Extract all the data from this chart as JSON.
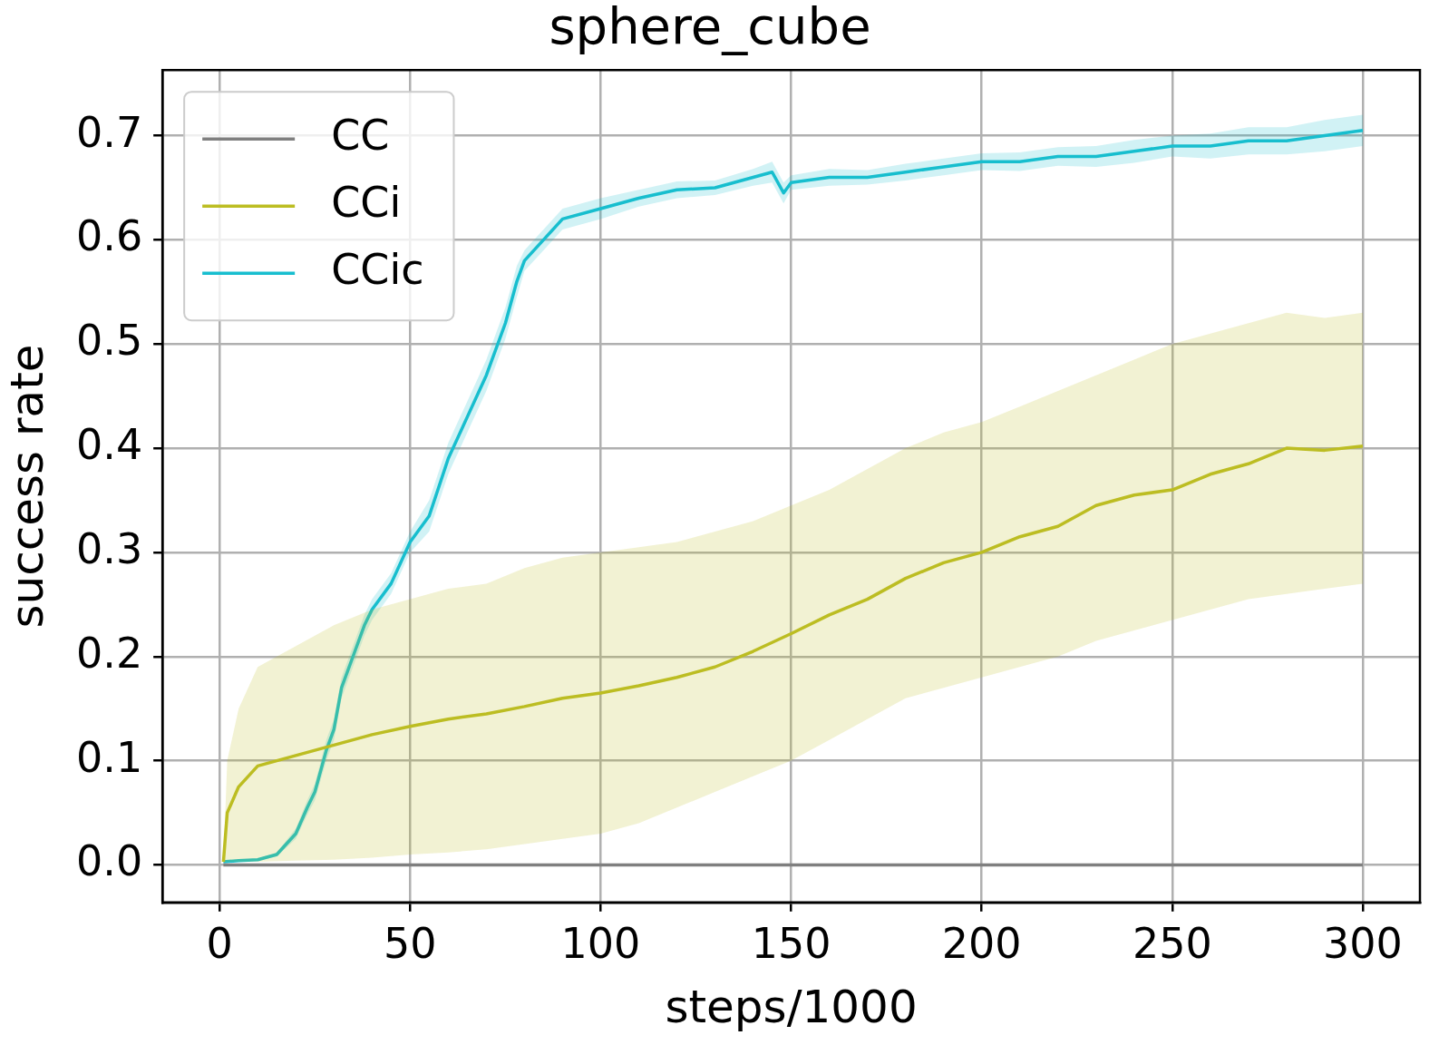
{
  "chart_data": {
    "type": "line",
    "title": "sphere_cube",
    "xlabel": "steps/1000",
    "ylabel": "success rate",
    "xlim": [
      -15,
      315
    ],
    "ylim": [
      -0.036,
      0.763
    ],
    "xticks": [
      0,
      50,
      100,
      150,
      200,
      250,
      300
    ],
    "yticks": [
      {
        "value": 0,
        "label": "0.0"
      },
      {
        "value": 0.1,
        "label": "0.1"
      },
      {
        "value": 0.2,
        "label": "0.2"
      },
      {
        "value": 0.3,
        "label": "0.3"
      },
      {
        "value": 0.4,
        "label": "0.4"
      },
      {
        "value": 0.5,
        "label": "0.5"
      },
      {
        "value": 0.6,
        "label": "0.6"
      },
      {
        "value": 0.7,
        "label": "0.7"
      }
    ],
    "grid": true,
    "legend": "top left",
    "series": [
      {
        "name": "CC",
        "color": "#7f7f7f",
        "x": [
          1,
          300
        ],
        "values": [
          0,
          0
        ]
      },
      {
        "name": "CCi",
        "color": "#bcbd22",
        "x": [
          1,
          2,
          5,
          10,
          20,
          30,
          40,
          50,
          60,
          70,
          80,
          90,
          100,
          110,
          120,
          130,
          140,
          150,
          160,
          170,
          180,
          190,
          200,
          210,
          220,
          230,
          240,
          250,
          260,
          270,
          280,
          290,
          300
        ],
        "values": [
          0.003,
          0.05,
          0.075,
          0.095,
          0.105,
          0.115,
          0.125,
          0.133,
          0.14,
          0.145,
          0.152,
          0.16,
          0.165,
          0.172,
          0.18,
          0.19,
          0.205,
          0.222,
          0.24,
          0.255,
          0.275,
          0.29,
          0.3,
          0.315,
          0.325,
          0.345,
          0.355,
          0.36,
          0.375,
          0.385,
          0.4,
          0.398,
          0.402
        ],
        "lower": [
          0.003,
          0.003,
          0.003,
          0.003,
          0.004,
          0.005,
          0.007,
          0.01,
          0.012,
          0.015,
          0.02,
          0.025,
          0.03,
          0.04,
          0.055,
          0.07,
          0.085,
          0.1,
          0.12,
          0.14,
          0.16,
          0.17,
          0.18,
          0.19,
          0.2,
          0.215,
          0.225,
          0.235,
          0.245,
          0.255,
          0.26,
          0.265,
          0.27
        ],
        "upper": [
          0.003,
          0.1,
          0.15,
          0.19,
          0.21,
          0.23,
          0.245,
          0.255,
          0.265,
          0.27,
          0.285,
          0.295,
          0.3,
          0.305,
          0.31,
          0.32,
          0.33,
          0.345,
          0.36,
          0.38,
          0.4,
          0.415,
          0.425,
          0.44,
          0.455,
          0.47,
          0.485,
          0.5,
          0.51,
          0.52,
          0.53,
          0.525,
          0.53
        ]
      },
      {
        "name": "CCic",
        "color": "#17becf",
        "x": [
          1,
          5,
          10,
          15,
          20,
          23,
          25,
          28,
          30,
          32,
          35,
          38,
          40,
          45,
          50,
          55,
          60,
          65,
          70,
          75,
          78,
          80,
          85,
          90,
          100,
          110,
          120,
          130,
          140,
          145,
          148,
          150,
          160,
          170,
          180,
          190,
          200,
          210,
          220,
          230,
          240,
          250,
          260,
          270,
          280,
          290,
          300
        ],
        "values": [
          0.003,
          0.004,
          0.005,
          0.01,
          0.03,
          0.055,
          0.07,
          0.11,
          0.13,
          0.17,
          0.2,
          0.23,
          0.245,
          0.27,
          0.31,
          0.335,
          0.39,
          0.43,
          0.47,
          0.52,
          0.56,
          0.58,
          0.6,
          0.62,
          0.63,
          0.64,
          0.648,
          0.65,
          0.66,
          0.665,
          0.645,
          0.655,
          0.66,
          0.66,
          0.665,
          0.67,
          0.675,
          0.675,
          0.68,
          0.68,
          0.685,
          0.69,
          0.69,
          0.695,
          0.695,
          0.7,
          0.705
        ],
        "lower": [
          0.003,
          0.003,
          0.004,
          0.008,
          0.025,
          0.048,
          0.062,
          0.1,
          0.12,
          0.16,
          0.19,
          0.22,
          0.235,
          0.26,
          0.3,
          0.32,
          0.375,
          0.415,
          0.455,
          0.505,
          0.545,
          0.57,
          0.59,
          0.61,
          0.62,
          0.632,
          0.64,
          0.643,
          0.652,
          0.655,
          0.635,
          0.648,
          0.652,
          0.653,
          0.657,
          0.662,
          0.667,
          0.666,
          0.671,
          0.67,
          0.674,
          0.68,
          0.678,
          0.682,
          0.682,
          0.685,
          0.69
        ],
        "upper": [
          0.003,
          0.005,
          0.006,
          0.012,
          0.035,
          0.062,
          0.078,
          0.12,
          0.14,
          0.18,
          0.21,
          0.24,
          0.255,
          0.28,
          0.32,
          0.35,
          0.405,
          0.445,
          0.485,
          0.535,
          0.575,
          0.59,
          0.61,
          0.63,
          0.64,
          0.648,
          0.656,
          0.657,
          0.668,
          0.675,
          0.655,
          0.662,
          0.668,
          0.667,
          0.673,
          0.678,
          0.683,
          0.684,
          0.689,
          0.69,
          0.696,
          0.7,
          0.702,
          0.708,
          0.708,
          0.715,
          0.72
        ]
      }
    ]
  }
}
